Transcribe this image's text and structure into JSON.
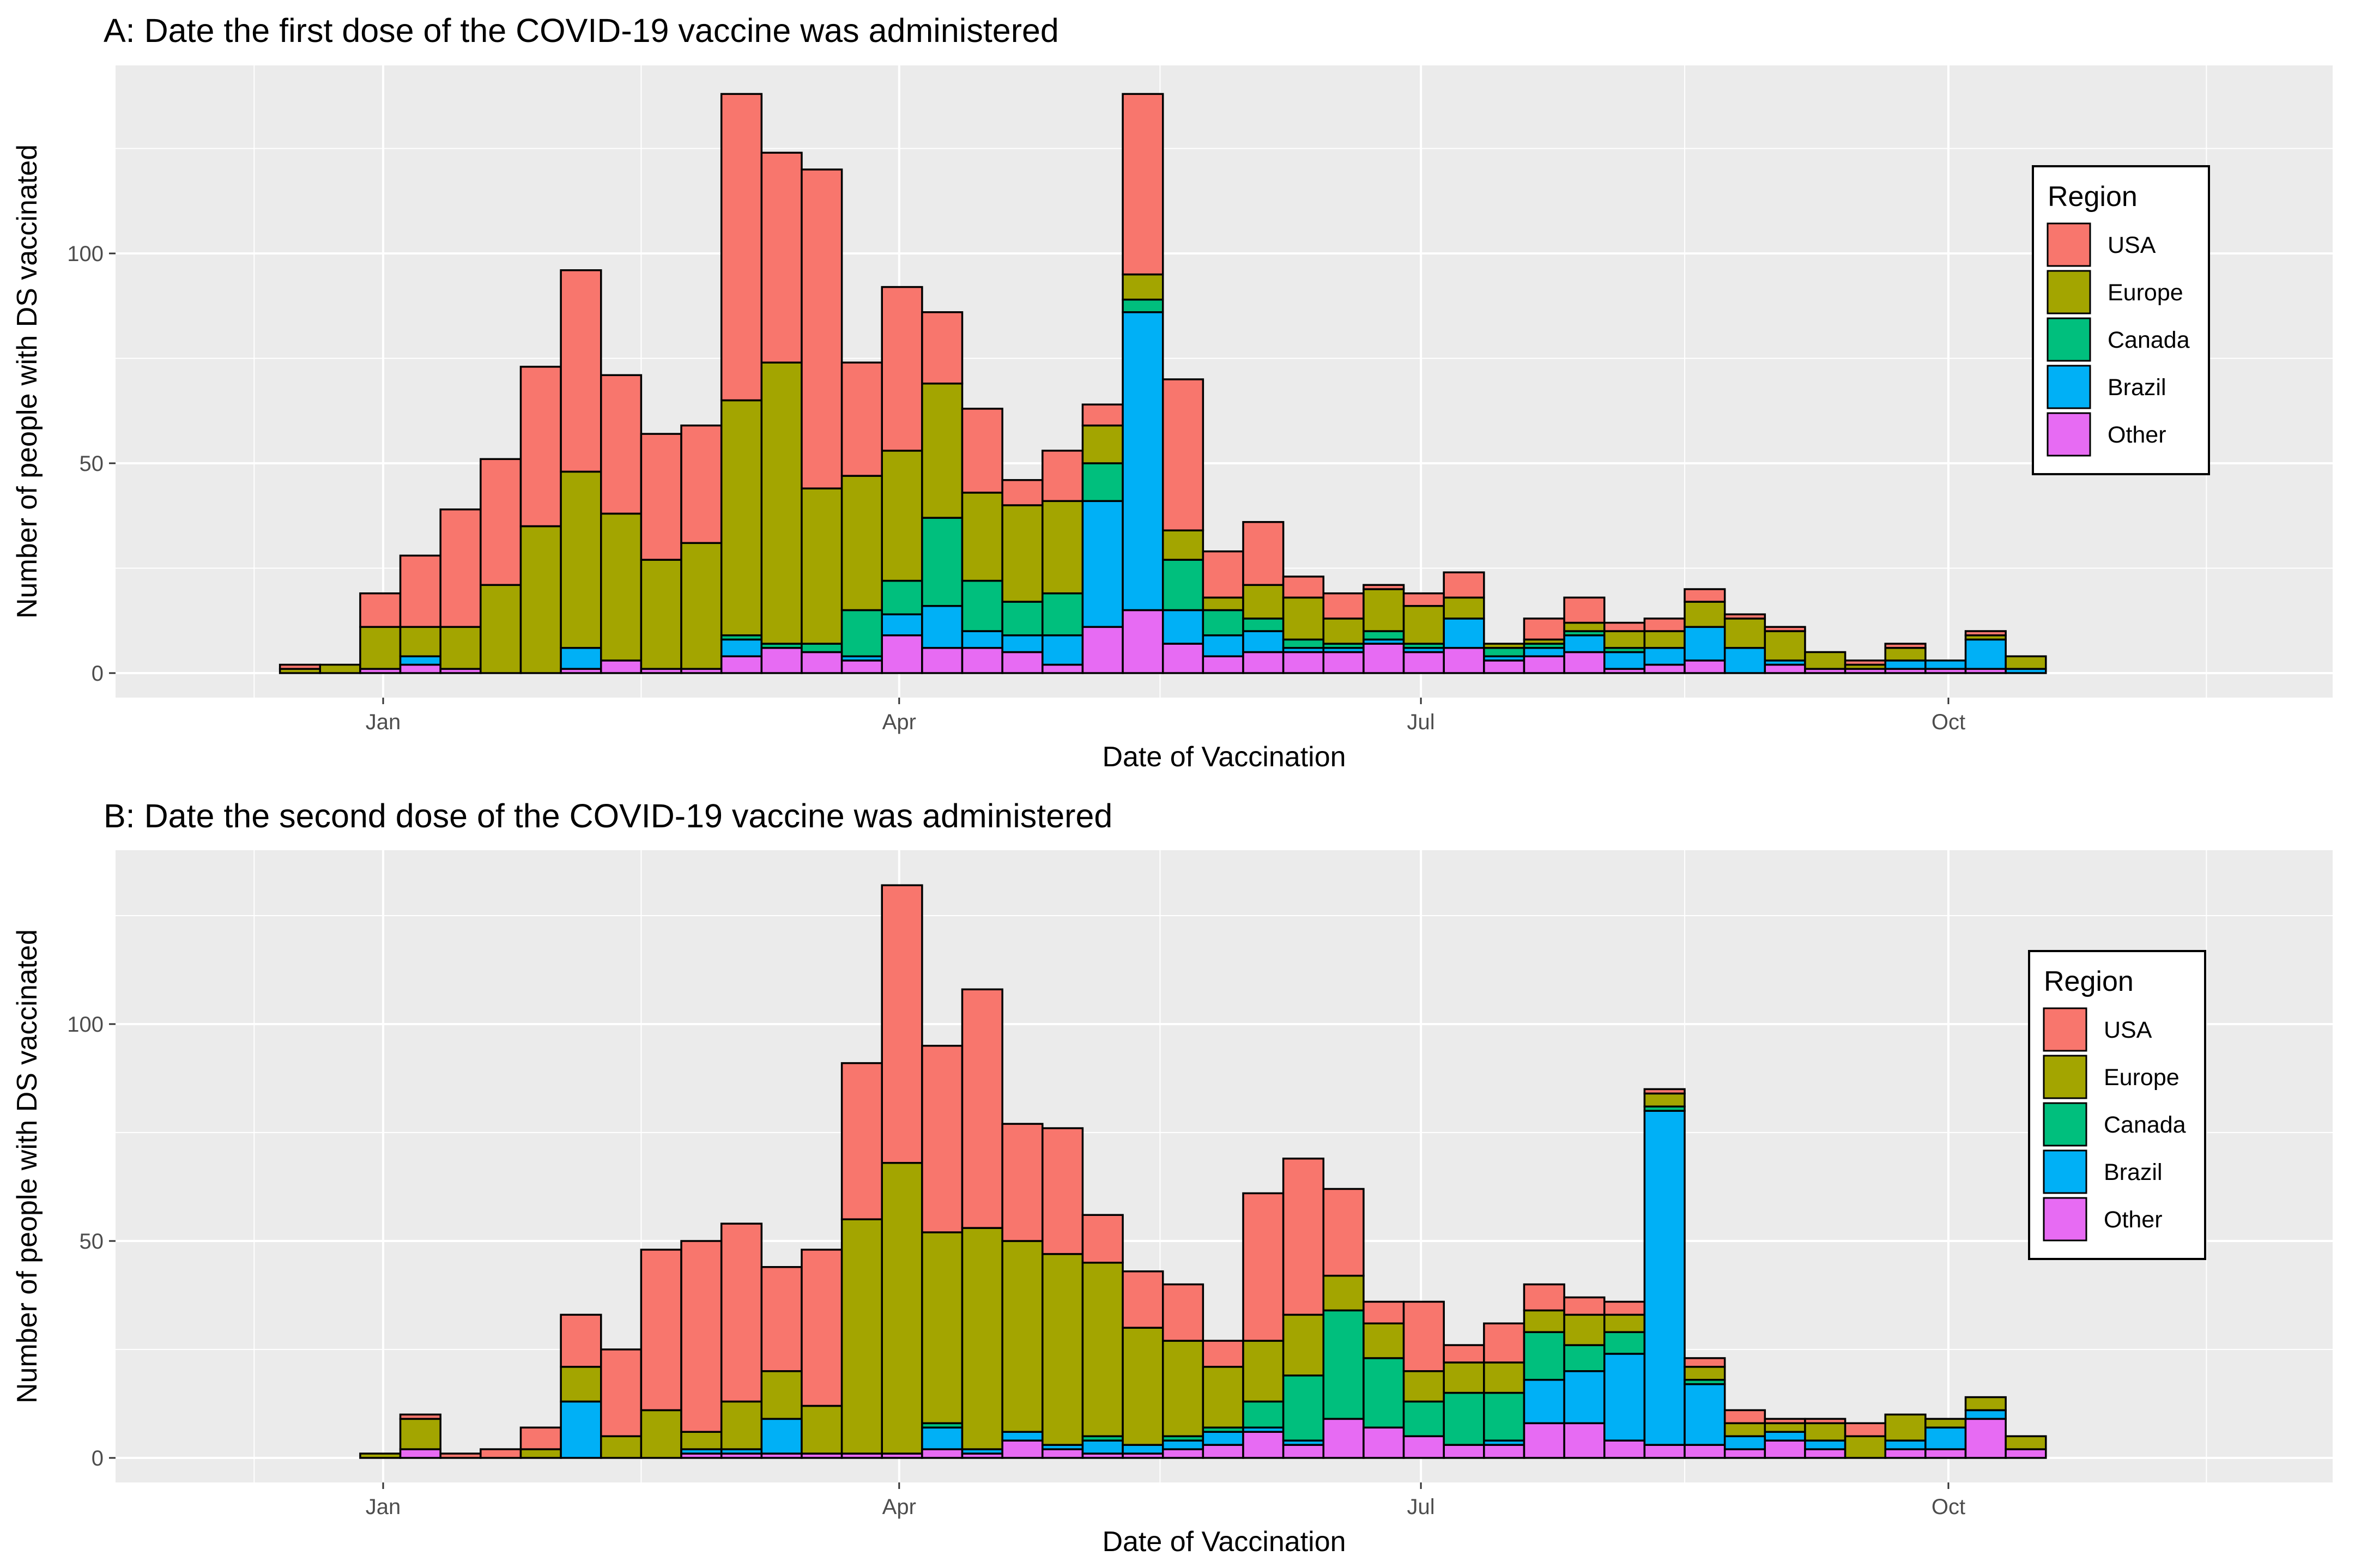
{
  "chart_data": [
    {
      "type": "bar",
      "stacked": true,
      "title": "A: Date the first dose of the COVID-19 vaccine was administered",
      "xlabel": "Date of Vaccination",
      "ylabel": "Number of people with DS vaccinated",
      "x_ticks": [
        "Jan",
        "Apr",
        "Jul",
        "Oct"
      ],
      "y_ticks": [
        0,
        50,
        100
      ],
      "ylim": [
        0,
        138
      ],
      "grid": true,
      "legend": {
        "title": "Region",
        "position": "right"
      },
      "bin_width_days": 7,
      "categories": [
        "2020-12-07",
        "2020-12-14",
        "2020-12-21",
        "2020-12-28",
        "2021-01-04",
        "2021-01-11",
        "2021-01-18",
        "2021-01-25",
        "2021-02-01",
        "2021-02-08",
        "2021-02-15",
        "2021-02-22",
        "2021-03-01",
        "2021-03-08",
        "2021-03-15",
        "2021-03-22",
        "2021-03-29",
        "2021-04-05",
        "2021-04-12",
        "2021-04-19",
        "2021-04-26",
        "2021-05-03",
        "2021-05-10",
        "2021-05-17",
        "2021-05-24",
        "2021-05-31",
        "2021-06-07",
        "2021-06-14",
        "2021-06-21",
        "2021-06-28",
        "2021-07-05",
        "2021-07-12",
        "2021-07-19",
        "2021-07-26",
        "2021-08-02",
        "2021-08-09",
        "2021-08-16",
        "2021-08-23",
        "2021-08-30",
        "2021-09-06",
        "2021-09-13",
        "2021-09-20",
        "2021-09-27",
        "2021-10-04",
        "2021-10-11"
      ],
      "series": [
        {
          "name": "Other",
          "color": "#E76BF3",
          "values": [
            0,
            0,
            0,
            1,
            2,
            1,
            0,
            0,
            1,
            3,
            1,
            1,
            4,
            6,
            5,
            3,
            9,
            6,
            6,
            5,
            2,
            11,
            15,
            7,
            4,
            5,
            5,
            5,
            7,
            5,
            6,
            3,
            4,
            5,
            1,
            2,
            3,
            0,
            2,
            1,
            1,
            1,
            1,
            1,
            0
          ]
        },
        {
          "name": "Brazil",
          "color": "#00B0F6",
          "values": [
            0,
            0,
            0,
            0,
            2,
            0,
            0,
            0,
            5,
            0,
            0,
            0,
            4,
            0,
            0,
            1,
            5,
            10,
            4,
            4,
            7,
            30,
            71,
            8,
            5,
            5,
            1,
            1,
            1,
            1,
            7,
            1,
            2,
            4,
            4,
            4,
            8,
            6,
            1,
            0,
            0,
            2,
            2,
            7,
            1
          ]
        },
        {
          "name": "Canada",
          "color": "#00BF7D",
          "values": [
            0,
            0,
            0,
            0,
            0,
            0,
            0,
            0,
            0,
            0,
            0,
            0,
            1,
            1,
            2,
            11,
            8,
            21,
            12,
            8,
            10,
            9,
            3,
            12,
            6,
            3,
            2,
            1,
            2,
            1,
            0,
            2,
            1,
            1,
            1,
            0,
            0,
            0,
            0,
            0,
            0,
            0,
            0,
            0,
            0
          ]
        },
        {
          "name": "Europe",
          "color": "#A3A500",
          "values": [
            0,
            1,
            2,
            10,
            7,
            10,
            21,
            35,
            42,
            35,
            26,
            30,
            56,
            67,
            37,
            32,
            31,
            32,
            21,
            23,
            22,
            9,
            6,
            7,
            3,
            8,
            10,
            6,
            10,
            9,
            5,
            1,
            1,
            2,
            4,
            4,
            6,
            7,
            7,
            4,
            1,
            3,
            0,
            1,
            3
          ]
        },
        {
          "name": "USA",
          "color": "#F8766D",
          "values": [
            0,
            1,
            0,
            8,
            17,
            28,
            30,
            38,
            48,
            33,
            30,
            28,
            73,
            50,
            76,
            27,
            39,
            17,
            20,
            6,
            12,
            5,
            43,
            36,
            11,
            15,
            5,
            6,
            1,
            3,
            6,
            0,
            5,
            6,
            2,
            3,
            3,
            1,
            1,
            0,
            1,
            1,
            0,
            1,
            0
          ]
        }
      ]
    },
    {
      "type": "bar",
      "stacked": true,
      "title": "B: Date the second dose of the COVID-19 vaccine was administered",
      "xlabel": "Date of Vaccination",
      "ylabel": "Number of people with DS vaccinated",
      "x_ticks": [
        "Jan",
        "Apr",
        "Jul",
        "Oct"
      ],
      "y_ticks": [
        0,
        50,
        100
      ],
      "ylim": [
        0,
        133
      ],
      "grid": true,
      "legend": {
        "title": "Region",
        "position": "right"
      },
      "bin_width_days": 7,
      "categories": [
        "2020-12-07",
        "2020-12-14",
        "2020-12-21",
        "2020-12-28",
        "2021-01-04",
        "2021-01-11",
        "2021-01-18",
        "2021-01-25",
        "2021-02-01",
        "2021-02-08",
        "2021-02-15",
        "2021-02-22",
        "2021-03-01",
        "2021-03-08",
        "2021-03-15",
        "2021-03-22",
        "2021-03-29",
        "2021-04-05",
        "2021-04-12",
        "2021-04-19",
        "2021-04-26",
        "2021-05-03",
        "2021-05-10",
        "2021-05-17",
        "2021-05-24",
        "2021-05-31",
        "2021-06-07",
        "2021-06-14",
        "2021-06-21",
        "2021-06-28",
        "2021-07-05",
        "2021-07-12",
        "2021-07-19",
        "2021-07-26",
        "2021-08-02",
        "2021-08-09",
        "2021-08-16",
        "2021-08-23",
        "2021-08-30",
        "2021-09-06",
        "2021-09-13",
        "2021-09-20",
        "2021-09-27",
        "2021-10-04",
        "2021-10-11"
      ],
      "series": [
        {
          "name": "Other",
          "color": "#E76BF3",
          "values": [
            0,
            0,
            0,
            0,
            2,
            0,
            0,
            0,
            0,
            0,
            0,
            1,
            1,
            1,
            1,
            1,
            1,
            2,
            1,
            4,
            2,
            1,
            1,
            2,
            3,
            6,
            3,
            9,
            7,
            5,
            3,
            3,
            8,
            8,
            4,
            3,
            3,
            2,
            4,
            2,
            0,
            2,
            2,
            9,
            2
          ]
        },
        {
          "name": "Brazil",
          "color": "#00B0F6",
          "values": [
            0,
            0,
            0,
            0,
            0,
            0,
            0,
            0,
            13,
            0,
            0,
            1,
            1,
            8,
            0,
            0,
            0,
            5,
            1,
            2,
            1,
            3,
            2,
            2,
            3,
            1,
            1,
            0,
            0,
            0,
            0,
            1,
            10,
            12,
            20,
            77,
            14,
            3,
            2,
            2,
            0,
            2,
            5,
            2,
            0
          ]
        },
        {
          "name": "Canada",
          "color": "#00BF7D",
          "values": [
            0,
            0,
            0,
            0,
            0,
            0,
            0,
            0,
            0,
            0,
            0,
            0,
            0,
            0,
            0,
            0,
            0,
            1,
            0,
            0,
            0,
            1,
            0,
            1,
            1,
            6,
            15,
            25,
            16,
            8,
            12,
            11,
            11,
            6,
            5,
            1,
            1,
            0,
            0,
            0,
            0,
            0,
            0,
            0,
            0
          ]
        },
        {
          "name": "Europe",
          "color": "#A3A500",
          "values": [
            0,
            0,
            0,
            1,
            7,
            0,
            0,
            2,
            8,
            5,
            11,
            4,
            11,
            11,
            11,
            54,
            67,
            44,
            51,
            44,
            44,
            40,
            27,
            22,
            14,
            14,
            14,
            8,
            8,
            7,
            7,
            7,
            5,
            7,
            4,
            3,
            3,
            3,
            2,
            4,
            5,
            6,
            2,
            3,
            3
          ]
        },
        {
          "name": "USA",
          "color": "#F8766D",
          "values": [
            0,
            0,
            0,
            0,
            1,
            1,
            2,
            5,
            12,
            20,
            37,
            44,
            41,
            24,
            36,
            36,
            64,
            43,
            55,
            27,
            29,
            11,
            13,
            13,
            6,
            34,
            36,
            20,
            5,
            16,
            4,
            9,
            6,
            4,
            3,
            1,
            2,
            3,
            1,
            1,
            3,
            0,
            0,
            0,
            0
          ]
        }
      ]
    }
  ]
}
